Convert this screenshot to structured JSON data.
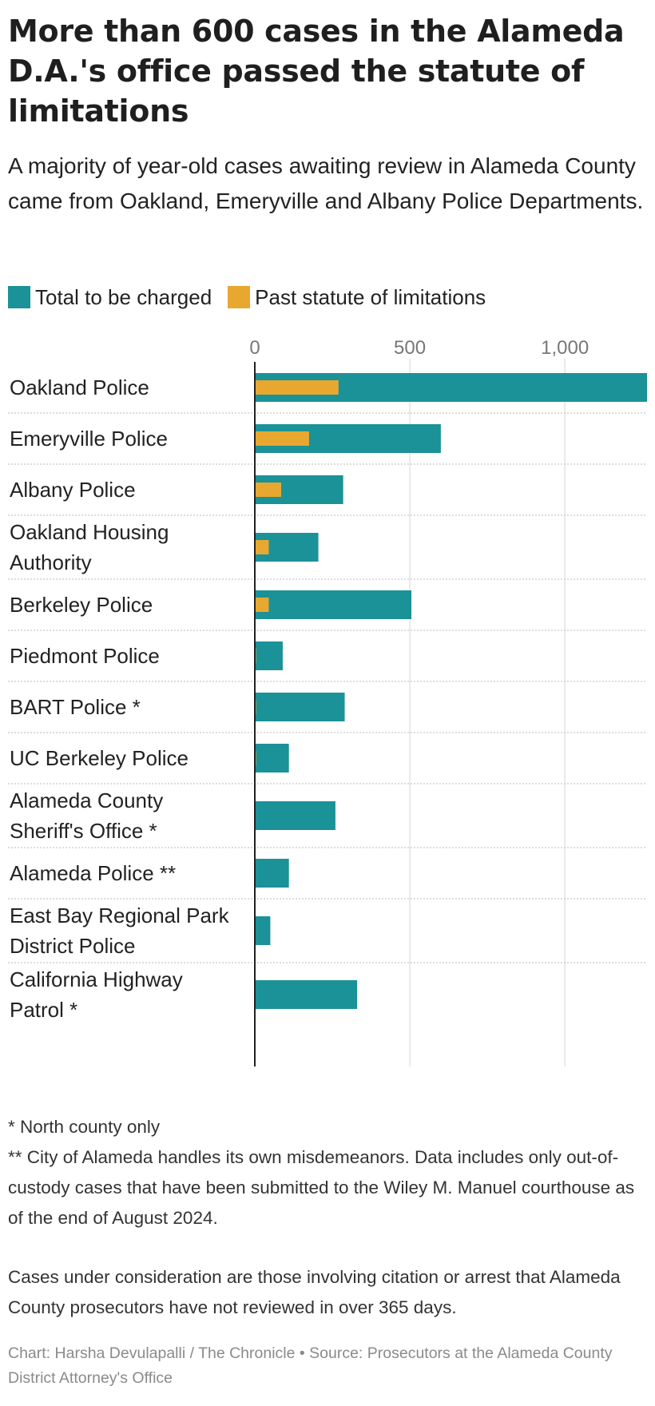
{
  "title": "More than 600 cases in the Alameda D.A.'s office passed the statute of limitations",
  "subtitle": "A majority of year-old cases awaiting review in Alameda County came from Oakland, Emeryville and Albany Police Departments.",
  "colors": {
    "total": "#1b9198",
    "past": "#e8a830",
    "grid": "#dddddd",
    "axis": "#222222",
    "divider": "#c8c8c8"
  },
  "chart_data": {
    "type": "bar",
    "orientation": "horizontal",
    "categories": [
      "Oakland Police",
      "Emeryville Police",
      "Albany Police",
      "Oakland Housing Authority",
      "Berkeley Police",
      "Piedmont Police",
      "BART Police *",
      "UC Berkeley Police",
      "Alameda County Sheriff's Office *",
      "Alameda Police **",
      "East Bay Regional Park District Police",
      "California Highway Patrol *"
    ],
    "category_lines": [
      [
        "Oakland Police"
      ],
      [
        "Emeryville Police"
      ],
      [
        "Albany Police"
      ],
      [
        "Oakland Housing",
        "Authority"
      ],
      [
        "Berkeley Police"
      ],
      [
        "Piedmont Police"
      ],
      [
        "BART Police *"
      ],
      [
        "UC Berkeley Police"
      ],
      [
        "Alameda County",
        "Sheriff's Office *"
      ],
      [
        "Alameda Police **"
      ],
      [
        "East Bay Regional Park",
        "District Police"
      ],
      [
        "California Highway",
        "Patrol *"
      ]
    ],
    "series": [
      {
        "name": "Total to be charged",
        "values": [
          1265,
          600,
          285,
          205,
          505,
          90,
          290,
          110,
          260,
          110,
          50,
          330
        ]
      },
      {
        "name": "Past statute of limitations",
        "values": [
          270,
          175,
          85,
          45,
          45,
          4,
          4,
          4,
          0,
          0,
          0,
          0
        ]
      }
    ],
    "xlim": [
      0,
      1265
    ],
    "xticks": [
      0,
      500,
      1000
    ],
    "xtick_labels": [
      "0",
      "500",
      "1,000"
    ],
    "legend": "top-left"
  },
  "notes": [
    "* North county only",
    "** City of Alameda handles its own misdemeanors. Data includes only out-of-custody cases that have been submitted to the Wiley M. Manuel courthouse as of the end of August 2024.",
    "Cases under consideration are those involving citation or arrest that Alameda County prosecutors have not reviewed in over 365 days."
  ],
  "credit": "Chart: Harsha Devulapalli / The Chronicle • Source: Prosecutors at the Alameda County District Attorney's Office"
}
